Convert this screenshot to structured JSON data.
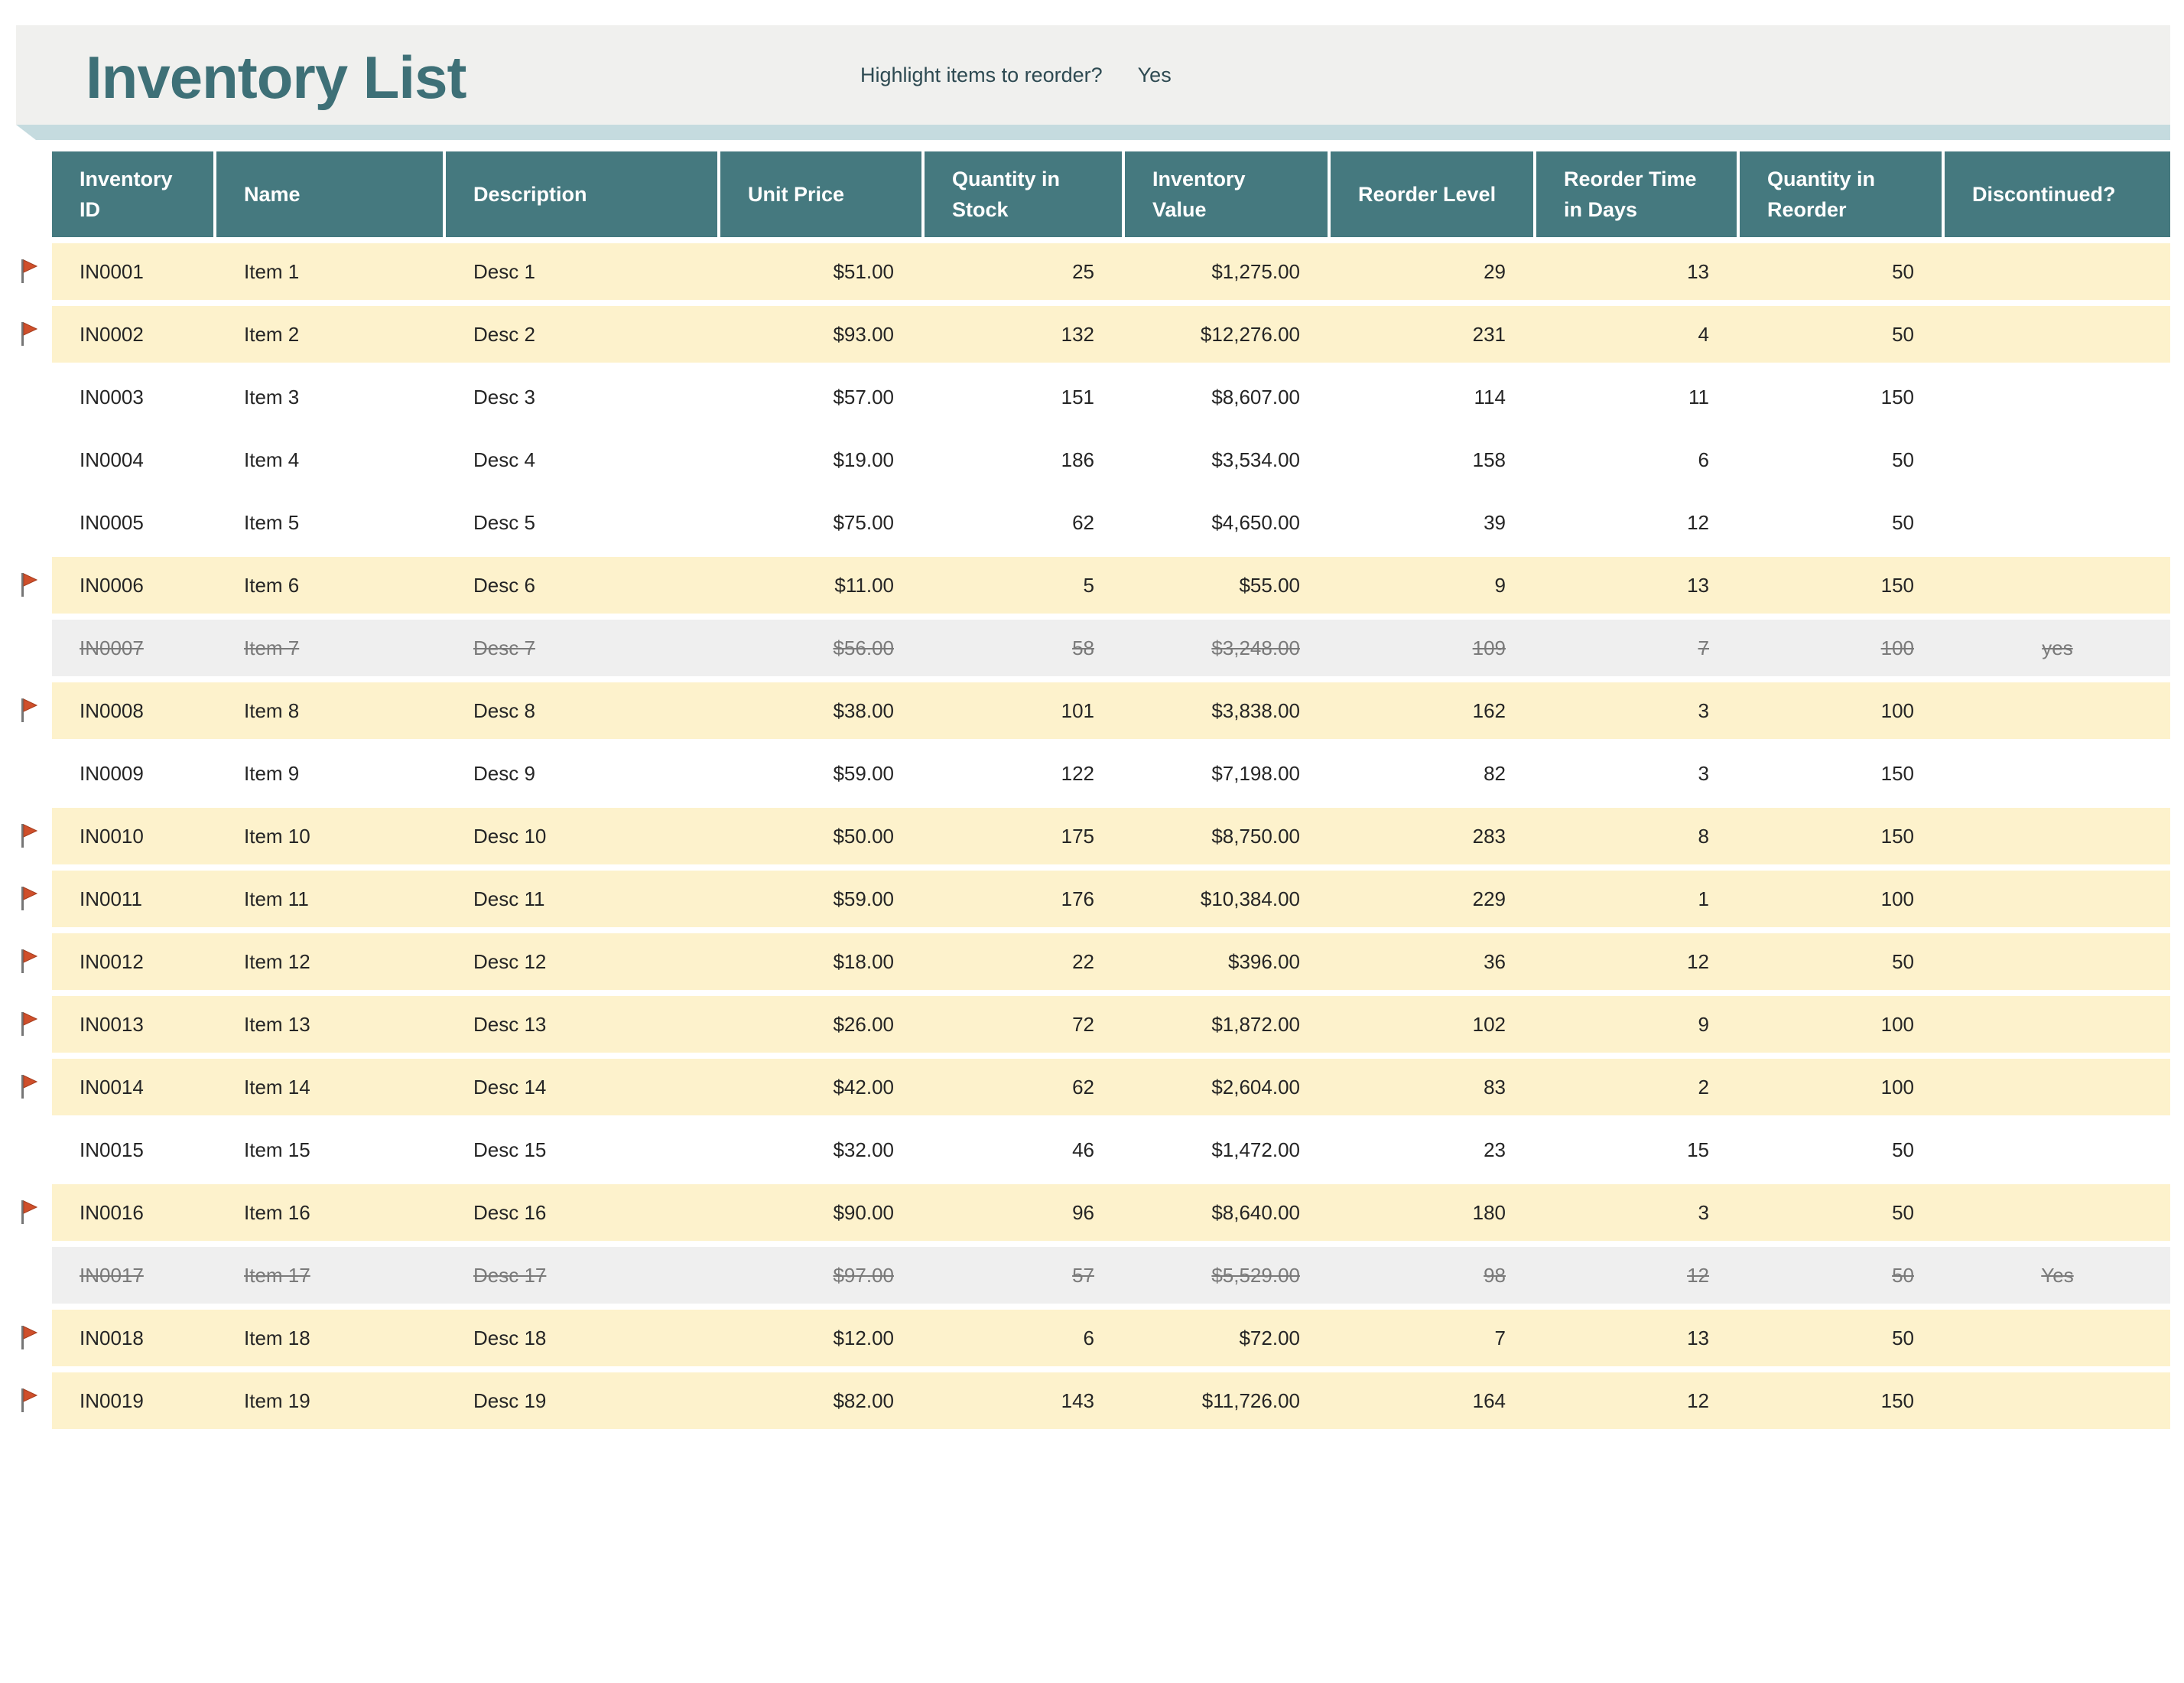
{
  "page": {
    "title": "Inventory List",
    "reorder_prompt": "Highlight items to reorder?",
    "reorder_value": "Yes"
  },
  "colors": {
    "title_text": "#3e7077",
    "title_band_bg": "#f0f0ee",
    "band_shadow": "#c5dbdf",
    "header_bg": "#45797f",
    "header_text": "#ffffff",
    "reorder_row_bg": "#fdf2cc",
    "discontinued_row_bg": "#efefef",
    "discontinued_text": "#7a7a7a",
    "body_text": "#252525",
    "flag_red": "#cf4f2b",
    "flag_pole_gray": "#757575"
  },
  "icons": {
    "flag": "flag-icon"
  },
  "table": {
    "columns": [
      {
        "key": "id",
        "label": "Inventory\nID",
        "align": "left"
      },
      {
        "key": "name",
        "label": "Name",
        "align": "left"
      },
      {
        "key": "desc",
        "label": "Description",
        "align": "left"
      },
      {
        "key": "price",
        "label": "Unit Price",
        "align": "right"
      },
      {
        "key": "stock",
        "label": "Quantity in\nStock",
        "align": "right"
      },
      {
        "key": "value",
        "label": "Inventory\nValue",
        "align": "right"
      },
      {
        "key": "level",
        "label": "Reorder Level",
        "align": "right"
      },
      {
        "key": "days",
        "label": "Reorder Time\nin Days",
        "align": "right"
      },
      {
        "key": "reorder",
        "label": "Quantity in\nReorder",
        "align": "right"
      },
      {
        "key": "disc",
        "label": "Discontinued?",
        "align": "center"
      }
    ],
    "rows": [
      {
        "id": "IN0001",
        "name": "Item 1",
        "desc": "Desc 1",
        "price": "$51.00",
        "stock": "25",
        "value": "$1,275.00",
        "level": "29",
        "days": "13",
        "reorder": "50",
        "disc": "",
        "flagged": true,
        "status": "reorder"
      },
      {
        "id": "IN0002",
        "name": "Item 2",
        "desc": "Desc 2",
        "price": "$93.00",
        "stock": "132",
        "value": "$12,276.00",
        "level": "231",
        "days": "4",
        "reorder": "50",
        "disc": "",
        "flagged": true,
        "status": "reorder"
      },
      {
        "id": "IN0003",
        "name": "Item 3",
        "desc": "Desc 3",
        "price": "$57.00",
        "stock": "151",
        "value": "$8,607.00",
        "level": "114",
        "days": "11",
        "reorder": "150",
        "disc": "",
        "flagged": false,
        "status": "normal"
      },
      {
        "id": "IN0004",
        "name": "Item 4",
        "desc": "Desc 4",
        "price": "$19.00",
        "stock": "186",
        "value": "$3,534.00",
        "level": "158",
        "days": "6",
        "reorder": "50",
        "disc": "",
        "flagged": false,
        "status": "normal"
      },
      {
        "id": "IN0005",
        "name": "Item 5",
        "desc": "Desc 5",
        "price": "$75.00",
        "stock": "62",
        "value": "$4,650.00",
        "level": "39",
        "days": "12",
        "reorder": "50",
        "disc": "",
        "flagged": false,
        "status": "normal"
      },
      {
        "id": "IN0006",
        "name": "Item 6",
        "desc": "Desc 6",
        "price": "$11.00",
        "stock": "5",
        "value": "$55.00",
        "level": "9",
        "days": "13",
        "reorder": "150",
        "disc": "",
        "flagged": true,
        "status": "reorder"
      },
      {
        "id": "IN0007",
        "name": "Item 7",
        "desc": "Desc 7",
        "price": "$56.00",
        "stock": "58",
        "value": "$3,248.00",
        "level": "109",
        "days": "7",
        "reorder": "100",
        "disc": "yes",
        "flagged": false,
        "status": "discontinued"
      },
      {
        "id": "IN0008",
        "name": "Item 8",
        "desc": "Desc 8",
        "price": "$38.00",
        "stock": "101",
        "value": "$3,838.00",
        "level": "162",
        "days": "3",
        "reorder": "100",
        "disc": "",
        "flagged": true,
        "status": "reorder"
      },
      {
        "id": "IN0009",
        "name": "Item 9",
        "desc": "Desc 9",
        "price": "$59.00",
        "stock": "122",
        "value": "$7,198.00",
        "level": "82",
        "days": "3",
        "reorder": "150",
        "disc": "",
        "flagged": false,
        "status": "normal"
      },
      {
        "id": "IN0010",
        "name": "Item 10",
        "desc": "Desc 10",
        "price": "$50.00",
        "stock": "175",
        "value": "$8,750.00",
        "level": "283",
        "days": "8",
        "reorder": "150",
        "disc": "",
        "flagged": true,
        "status": "reorder"
      },
      {
        "id": "IN0011",
        "name": "Item 11",
        "desc": "Desc 11",
        "price": "$59.00",
        "stock": "176",
        "value": "$10,384.00",
        "level": "229",
        "days": "1",
        "reorder": "100",
        "disc": "",
        "flagged": true,
        "status": "reorder"
      },
      {
        "id": "IN0012",
        "name": "Item 12",
        "desc": "Desc 12",
        "price": "$18.00",
        "stock": "22",
        "value": "$396.00",
        "level": "36",
        "days": "12",
        "reorder": "50",
        "disc": "",
        "flagged": true,
        "status": "reorder"
      },
      {
        "id": "IN0013",
        "name": "Item 13",
        "desc": "Desc 13",
        "price": "$26.00",
        "stock": "72",
        "value": "$1,872.00",
        "level": "102",
        "days": "9",
        "reorder": "100",
        "disc": "",
        "flagged": true,
        "status": "reorder"
      },
      {
        "id": "IN0014",
        "name": "Item 14",
        "desc": "Desc 14",
        "price": "$42.00",
        "stock": "62",
        "value": "$2,604.00",
        "level": "83",
        "days": "2",
        "reorder": "100",
        "disc": "",
        "flagged": true,
        "status": "reorder"
      },
      {
        "id": "IN0015",
        "name": "Item 15",
        "desc": "Desc 15",
        "price": "$32.00",
        "stock": "46",
        "value": "$1,472.00",
        "level": "23",
        "days": "15",
        "reorder": "50",
        "disc": "",
        "flagged": false,
        "status": "normal"
      },
      {
        "id": "IN0016",
        "name": "Item 16",
        "desc": "Desc 16",
        "price": "$90.00",
        "stock": "96",
        "value": "$8,640.00",
        "level": "180",
        "days": "3",
        "reorder": "50",
        "disc": "",
        "flagged": true,
        "status": "reorder"
      },
      {
        "id": "IN0017",
        "name": "Item 17",
        "desc": "Desc 17",
        "price": "$97.00",
        "stock": "57",
        "value": "$5,529.00",
        "level": "98",
        "days": "12",
        "reorder": "50",
        "disc": "Yes",
        "flagged": false,
        "status": "discontinued"
      },
      {
        "id": "IN0018",
        "name": "Item 18",
        "desc": "Desc 18",
        "price": "$12.00",
        "stock": "6",
        "value": "$72.00",
        "level": "7",
        "days": "13",
        "reorder": "50",
        "disc": "",
        "flagged": true,
        "status": "reorder"
      },
      {
        "id": "IN0019",
        "name": "Item 19",
        "desc": "Desc 19",
        "price": "$82.00",
        "stock": "143",
        "value": "$11,726.00",
        "level": "164",
        "days": "12",
        "reorder": "150",
        "disc": "",
        "flagged": true,
        "status": "reorder"
      }
    ]
  }
}
